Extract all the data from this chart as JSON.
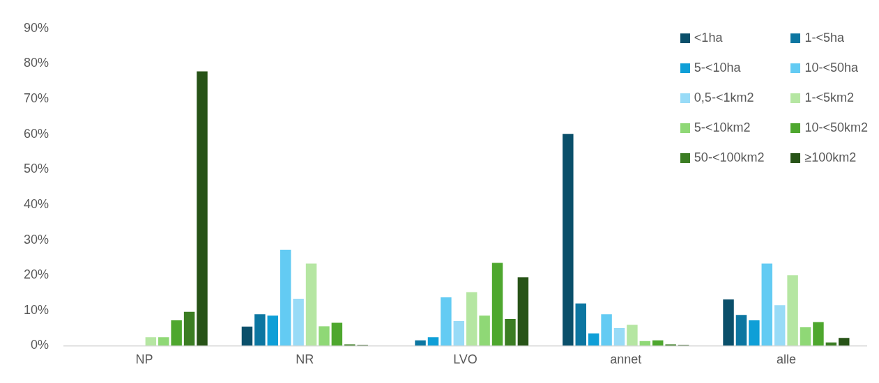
{
  "chart_data": {
    "type": "bar",
    "categories": [
      "NP",
      "NR",
      "LVO",
      "annet",
      "alle"
    ],
    "series": [
      {
        "name": "<1ha",
        "color": "#0a4f6a",
        "values": [
          0,
          5.4,
          0,
          60.1,
          13.1
        ]
      },
      {
        "name": "1-<5ha",
        "color": "#0c76a1",
        "values": [
          0,
          8.9,
          1.5,
          12.0,
          8.7
        ]
      },
      {
        "name": "5-<10ha",
        "color": "#0f9fd7",
        "values": [
          0,
          8.5,
          2.4,
          3.5,
          7.2
        ]
      },
      {
        "name": "10-<50ha",
        "color": "#63cbf3",
        "values": [
          0,
          27.2,
          13.7,
          8.9,
          23.3
        ]
      },
      {
        "name": "0,5-<1km2",
        "color": "#98dbf7",
        "values": [
          0,
          13.3,
          7.0,
          5.0,
          11.5
        ]
      },
      {
        "name": "1-<5km2",
        "color": "#b5e6a2",
        "values": [
          2.4,
          23.3,
          15.2,
          5.9,
          20.0
        ]
      },
      {
        "name": "5-<10km2",
        "color": "#8fd876",
        "values": [
          2.4,
          5.5,
          8.5,
          1.3,
          5.2
        ]
      },
      {
        "name": "10-<50km2",
        "color": "#4ea72e",
        "values": [
          7.2,
          6.5,
          23.5,
          1.5,
          6.7
        ]
      },
      {
        "name": "50-<100km2",
        "color": "#3b7d23",
        "values": [
          9.6,
          0.4,
          7.6,
          0.4,
          0.9
        ]
      },
      {
        "name": "≥100km2",
        "color": "#275317",
        "values": [
          77.8,
          0.2,
          19.4,
          0.2,
          2.2
        ]
      }
    ],
    "ylim": [
      0,
      90
    ],
    "yticks": [
      {
        "value": 0,
        "label": "0%"
      },
      {
        "value": 10,
        "label": "10%"
      },
      {
        "value": 20,
        "label": "20%"
      },
      {
        "value": 30,
        "label": "30%"
      },
      {
        "value": 40,
        "label": "40%"
      },
      {
        "value": 50,
        "label": "50%"
      },
      {
        "value": 60,
        "label": "60%"
      },
      {
        "value": 70,
        "label": "70%"
      },
      {
        "value": 80,
        "label": "80%"
      },
      {
        "value": 90,
        "label": "90%"
      }
    ],
    "grid": false,
    "legend": "top right"
  }
}
